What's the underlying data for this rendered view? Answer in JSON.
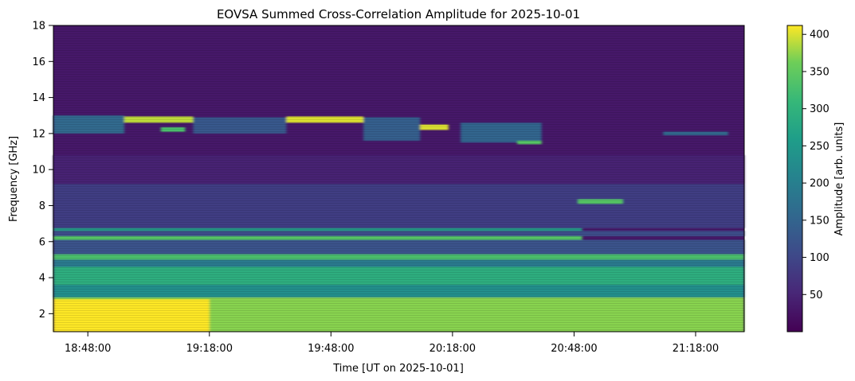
{
  "chart_data": {
    "type": "heatmap",
    "title": "EOVSA Summed Cross-Correlation Amplitude for 2025-10-01",
    "xlabel": "Time [UT on 2025-10-01]",
    "ylabel": "Frequency [GHz]",
    "colorbar_label": "Amplitude [arb. units]",
    "colormap": "viridis",
    "xlim": [
      "18:39:30",
      "21:30:00"
    ],
    "xticks": [
      "18:48:00",
      "19:18:00",
      "19:48:00",
      "20:18:00",
      "20:48:00",
      "21:18:00"
    ],
    "ylim": [
      1.0,
      18.0
    ],
    "yticks": [
      2,
      4,
      6,
      8,
      10,
      12,
      14,
      16,
      18
    ],
    "clim": [
      0,
      412
    ],
    "cticks": [
      50,
      100,
      150,
      200,
      250,
      300,
      350,
      400
    ],
    "background_level": 30,
    "features": [
      {
        "t0": "18:39:30",
        "t1": "21:30:00",
        "f0": 1.0,
        "f1": 2.9,
        "amplitude": 370
      },
      {
        "t0": "18:39:30",
        "t1": "19:18:00",
        "f0": 1.0,
        "f1": 2.8,
        "amplitude": 412
      },
      {
        "t0": "18:39:30",
        "t1": "21:30:00",
        "f0": 2.9,
        "f1": 3.6,
        "amplitude": 230
      },
      {
        "t0": "18:39:30",
        "t1": "21:30:00",
        "f0": 3.6,
        "f1": 4.6,
        "amplitude": 290
      },
      {
        "t0": "18:39:30",
        "t1": "21:30:00",
        "f0": 4.6,
        "f1": 5.0,
        "amplitude": 190
      },
      {
        "t0": "18:39:30",
        "t1": "21:30:00",
        "f0": 5.0,
        "f1": 5.3,
        "amplitude": 330
      },
      {
        "t0": "18:39:30",
        "t1": "21:30:00",
        "f0": 5.3,
        "f1": 6.1,
        "amplitude": 120
      },
      {
        "t0": "18:39:30",
        "t1": "20:50:00",
        "f0": 6.1,
        "f1": 6.3,
        "amplitude": 340
      },
      {
        "t0": "18:39:30",
        "t1": "21:30:00",
        "f0": 6.3,
        "f1": 6.6,
        "amplitude": 110
      },
      {
        "t0": "18:39:30",
        "t1": "20:50:00",
        "f0": 6.6,
        "f1": 6.75,
        "amplitude": 260
      },
      {
        "t0": "18:39:30",
        "t1": "21:30:00",
        "f0": 6.75,
        "f1": 9.2,
        "amplitude": 85
      },
      {
        "t0": "20:49:00",
        "t1": "21:00:00",
        "f0": 8.1,
        "f1": 8.35,
        "amplitude": 340
      },
      {
        "t0": "18:39:30",
        "t1": "21:30:00",
        "f0": 9.2,
        "f1": 10.8,
        "amplitude": 45
      },
      {
        "t0": "18:39:30",
        "t1": "18:57:00",
        "f0": 12.0,
        "f1": 13.0,
        "amplitude": 160
      },
      {
        "t0": "18:57:00",
        "t1": "19:14:00",
        "f0": 12.6,
        "f1": 12.95,
        "amplitude": 390
      },
      {
        "t0": "19:06:00",
        "t1": "19:12:00",
        "f0": 12.1,
        "f1": 12.35,
        "amplitude": 330
      },
      {
        "t0": "19:14:00",
        "t1": "19:37:00",
        "f0": 12.0,
        "f1": 12.9,
        "amplitude": 130
      },
      {
        "t0": "19:37:00",
        "t1": "19:56:00",
        "f0": 12.6,
        "f1": 12.95,
        "amplitude": 400
      },
      {
        "t0": "19:56:00",
        "t1": "20:10:00",
        "f0": 11.6,
        "f1": 12.9,
        "amplitude": 140
      },
      {
        "t0": "20:10:00",
        "t1": "20:17:00",
        "f0": 12.2,
        "f1": 12.5,
        "amplitude": 400
      },
      {
        "t0": "20:20:00",
        "t1": "20:40:00",
        "f0": 11.5,
        "f1": 12.6,
        "amplitude": 150
      },
      {
        "t0": "20:34:00",
        "t1": "20:40:00",
        "f0": 11.4,
        "f1": 11.6,
        "amplitude": 340
      },
      {
        "t0": "21:10:00",
        "t1": "21:26:00",
        "f0": 11.9,
        "f1": 12.1,
        "amplitude": 160
      }
    ]
  }
}
